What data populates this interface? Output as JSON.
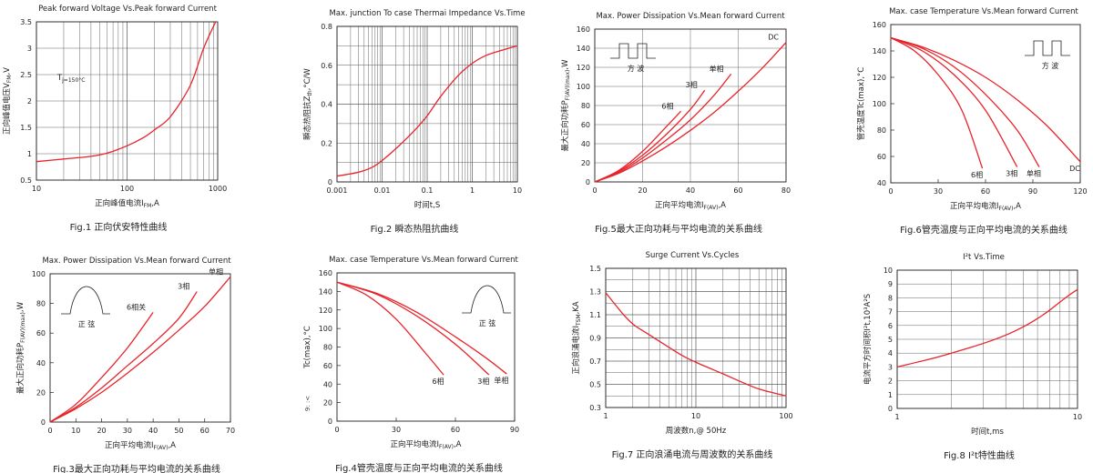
{
  "chart_data": [
    {
      "id": "fig1",
      "type": "line",
      "title": "Peak forward Voltage Vs.Peak forward Current",
      "caption": "Fig.1 正向伏安特性曲线",
      "xlabel": "正向峰值电流I_FM,A",
      "ylabel": "正向峰值电压V_FM,V",
      "xscale": "log",
      "yscale": "linear",
      "xlim": [
        10,
        1000
      ],
      "ylim": [
        0.5,
        3.5
      ],
      "xticks": [
        10,
        100,
        1000
      ],
      "yticks": [
        0.5,
        1,
        1.5,
        2,
        2.5,
        3,
        3.5
      ],
      "ytick_labels": [
        "0.5",
        "1",
        "1.5",
        "2",
        "2.5",
        "3",
        "3.5"
      ],
      "xtick_labels": [
        "10",
        "100",
        "1000"
      ],
      "grid": true,
      "annotations": [
        {
          "text": "T_j=150°C",
          "x": 17,
          "y": 2.4
        }
      ],
      "series": [
        {
          "name": "",
          "color": "#e8232a",
          "x": [
            10,
            20,
            40,
            60,
            100,
            150,
            200,
            300,
            500,
            700,
            950
          ],
          "y": [
            0.85,
            0.9,
            0.95,
            1.01,
            1.15,
            1.3,
            1.45,
            1.7,
            2.3,
            3.0,
            3.5
          ]
        }
      ]
    },
    {
      "id": "fig2",
      "type": "line",
      "title": "Max. junction To case Thermai Impedance Vs.Time",
      "caption": "Fig.2 瞬态热阻抗曲线",
      "xlabel": "时间t,S",
      "ylabel": "瞬态热阻抗Z_th,°C/W",
      "xscale": "log",
      "yscale": "linear",
      "xlim": [
        0.001,
        10
      ],
      "ylim": [
        0,
        0.8
      ],
      "xticks": [
        0.001,
        0.01,
        0.1,
        1,
        10
      ],
      "xtick_labels": [
        "0.001",
        "0.01",
        "0.1",
        "1",
        "10"
      ],
      "yticks": [
        0,
        0.2,
        0.4,
        0.6,
        0.8
      ],
      "ytick_labels": [
        "0",
        "0.2",
        "0.4",
        "0.6",
        "0.8"
      ],
      "grid": true,
      "series": [
        {
          "name": "",
          "color": "#e8232a",
          "x": [
            0.001,
            0.003,
            0.006,
            0.01,
            0.02,
            0.05,
            0.1,
            0.2,
            0.5,
            1,
            2,
            5,
            10
          ],
          "y": [
            0.03,
            0.05,
            0.075,
            0.11,
            0.17,
            0.26,
            0.34,
            0.44,
            0.55,
            0.61,
            0.65,
            0.68,
            0.7
          ]
        }
      ]
    },
    {
      "id": "fig5",
      "type": "line",
      "title": "Max. Power Dissipation Vs.Mean forward Current",
      "caption": "Fig.5最大正向功耗与平均电流的关系曲线",
      "xlabel": "正向平均电流I_F(AV),A",
      "ylabel": "最大正向功耗P_F(AV)(max),W",
      "xscale": "linear",
      "yscale": "linear",
      "xlim": [
        0,
        80
      ],
      "ylim": [
        0,
        160
      ],
      "xticks": [
        0,
        20,
        40,
        60,
        80
      ],
      "xtick_labels": [
        "0",
        "20",
        "40",
        "60",
        "80"
      ],
      "yticks": [
        0,
        20,
        40,
        60,
        80,
        100,
        120,
        140,
        160
      ],
      "ytick_labels": [
        "0",
        "20",
        "40",
        "60",
        "80",
        "100",
        "120",
        "140",
        "160"
      ],
      "grid": true,
      "inset_label": "方  波",
      "inset_shape": "square",
      "series": [
        {
          "name": "6相",
          "color": "#e8232a",
          "x": [
            0,
            10,
            20,
            30,
            36
          ],
          "y": [
            0,
            12,
            32,
            58,
            74
          ]
        },
        {
          "name": "3相",
          "color": "#e8232a",
          "x": [
            0,
            10,
            20,
            30,
            40,
            46
          ],
          "y": [
            0,
            11,
            28,
            50,
            76,
            96
          ]
        },
        {
          "name": "单相",
          "color": "#e8232a",
          "x": [
            0,
            10,
            20,
            30,
            40,
            50,
            57
          ],
          "y": [
            0,
            10,
            25,
            44,
            65,
            91,
            113
          ]
        },
        {
          "name": "DC",
          "color": "#e8232a",
          "x": [
            0,
            10,
            20,
            30,
            40,
            50,
            60,
            70,
            80
          ],
          "y": [
            0,
            9,
            22,
            37,
            54,
            73,
            95,
            119,
            146
          ]
        }
      ]
    },
    {
      "id": "fig6",
      "type": "line",
      "title": "Max. case Temperature Vs.Mean forward Current",
      "caption": "Fig.6管壳温度与正向平均电流的关系曲线",
      "xlabel": "正向平均电流I_F(AV),A",
      "ylabel": "管壳温度Tc(max),°C",
      "xscale": "linear",
      "yscale": "linear",
      "xlim": [
        0,
        120
      ],
      "ylim": [
        40,
        160
      ],
      "xticks": [
        0,
        30,
        60,
        90,
        120
      ],
      "xtick_labels": [
        "0",
        "30",
        "60",
        "90",
        "120"
      ],
      "yticks": [
        40,
        60,
        80,
        100,
        120,
        140,
        160
      ],
      "ytick_labels": [
        "40",
        "60",
        "80",
        "100",
        "120",
        "140",
        "160"
      ],
      "grid": false,
      "inset_label": "方  波",
      "inset_shape": "square",
      "series": [
        {
          "name": "6相",
          "color": "#e8232a",
          "x": [
            0,
            15,
            30,
            45,
            58
          ],
          "y": [
            150,
            140,
            122,
            95,
            51
          ]
        },
        {
          "name": "3相",
          "color": "#e8232a",
          "x": [
            0,
            20,
            40,
            60,
            80
          ],
          "y": [
            150,
            140,
            122,
            95,
            52
          ]
        },
        {
          "name": "单相",
          "color": "#e8232a",
          "x": [
            0,
            20,
            40,
            60,
            80,
            94
          ],
          "y": [
            150,
            142,
            128,
            107,
            80,
            52
          ]
        },
        {
          "name": "DC",
          "color": "#e8232a",
          "x": [
            0,
            20,
            40,
            60,
            80,
            100,
            120
          ],
          "y": [
            150,
            143,
            133,
            120,
            103,
            82,
            56
          ]
        }
      ]
    },
    {
      "id": "fig3",
      "type": "line",
      "title": "Max. Power Dissipation Vs.Mean forward Current",
      "caption": "Fig.3最大正向功耗与平均电流的关系曲线",
      "xlabel": "正向平均电流I_F(AV),A",
      "ylabel": "最大正向功耗P_F(AV)(max),W",
      "xscale": "linear",
      "yscale": "linear",
      "xlim": [
        0,
        70
      ],
      "ylim": [
        0,
        100
      ],
      "xticks": [
        0,
        10,
        20,
        30,
        40,
        50,
        60,
        70
      ],
      "xtick_labels": [
        "0",
        "10",
        "20",
        "30",
        "40",
        "50",
        "60",
        "70"
      ],
      "yticks": [
        0,
        20,
        40,
        60,
        80,
        100
      ],
      "ytick_labels": [
        "0",
        "20",
        "40",
        "60",
        "80",
        "100"
      ],
      "grid": false,
      "inset_label": "正  弦",
      "inset_shape": "sine",
      "series": [
        {
          "name": "6相关",
          "color": "#e8232a",
          "x": [
            0,
            10,
            20,
            30,
            40
          ],
          "y": [
            0,
            12,
            30,
            50,
            74
          ]
        },
        {
          "name": "3相",
          "color": "#e8232a",
          "x": [
            0,
            10,
            20,
            30,
            40,
            50,
            57
          ],
          "y": [
            0,
            10,
            23,
            38,
            53,
            70,
            88
          ]
        },
        {
          "name": "单相",
          "color": "#e8232a",
          "x": [
            0,
            10,
            20,
            30,
            40,
            50,
            60,
            70
          ],
          "y": [
            0,
            9,
            20,
            33,
            47,
            62,
            78,
            98
          ]
        }
      ]
    },
    {
      "id": "fig4",
      "type": "line",
      "title": "Max. case Temperature Vs.Mean forward Current",
      "caption": "Fig.4管壳温度与正向平均电流的关系曲线",
      "xlabel": "正向平均电流I_F(AV),A",
      "ylabel": "Tc(max),°C",
      "ylabel_prefix": "9: :<",
      "xscale": "linear",
      "yscale": "linear",
      "xlim": [
        0,
        90
      ],
      "ylim": [
        0,
        160
      ],
      "xticks": [
        0,
        30,
        60,
        90
      ],
      "xtick_labels": [
        "0",
        "30",
        "60",
        "90"
      ],
      "yticks": [
        0,
        20,
        40,
        60,
        80,
        100,
        120,
        140,
        160
      ],
      "ytick_labels": [
        "0",
        "20",
        "40",
        "60",
        "80",
        "100",
        "120",
        "140",
        "160"
      ],
      "grid": false,
      "inset_label": "正  弦",
      "inset_shape": "sine",
      "series": [
        {
          "name": "6相",
          "color": "#e8232a",
          "x": [
            0,
            15,
            30,
            45,
            54
          ],
          "y": [
            150,
            136,
            110,
            73,
            50
          ]
        },
        {
          "name": "3相",
          "color": "#e8232a",
          "x": [
            0,
            20,
            40,
            60,
            77
          ],
          "y": [
            150,
            137,
            114,
            83,
            50
          ]
        },
        {
          "name": "单相",
          "color": "#e8232a",
          "x": [
            0,
            20,
            40,
            60,
            75,
            86
          ],
          "y": [
            150,
            138,
            118,
            91,
            69,
            51
          ]
        }
      ]
    },
    {
      "id": "fig7",
      "type": "line",
      "title": "Surge Current Vs.Cycles",
      "caption": "Fig.7 正向浪涌电流与周波数的关系曲线",
      "xlabel": "周波数n,@ 50Hz",
      "ylabel": "正向浪涌电流I_TSM,KA",
      "xscale": "log",
      "yscale": "linear",
      "xlim": [
        1,
        100
      ],
      "ylim": [
        0.3,
        1.5
      ],
      "xticks": [
        1,
        10,
        100
      ],
      "xtick_labels": [
        "1",
        "10",
        "100"
      ],
      "yticks": [
        0.3,
        0.5,
        0.7,
        0.9,
        1.1,
        1.3,
        1.5
      ],
      "ytick_labels": [
        "0.3",
        "0.5",
        "0.7",
        "0.9",
        "1.1",
        "1.3",
        "1.5"
      ],
      "grid": true,
      "series": [
        {
          "name": "",
          "color": "#e8232a",
          "x": [
            1,
            1.5,
            2,
            3,
            5,
            7,
            10,
            20,
            30,
            50,
            100
          ],
          "y": [
            1.29,
            1.12,
            1.02,
            0.93,
            0.82,
            0.75,
            0.69,
            0.59,
            0.53,
            0.46,
            0.4
          ]
        }
      ]
    },
    {
      "id": "fig8",
      "type": "line",
      "title": "I²t  Vs.Time",
      "caption": "Fig.8 I²t特性曲线",
      "xlabel": "时间t,ms",
      "ylabel": "电流平方时间积I²t,10³A²S",
      "xscale": "log",
      "yscale": "linear",
      "xlim": [
        1,
        10
      ],
      "ylim": [
        0,
        10
      ],
      "xticks": [
        1,
        10
      ],
      "xtick_labels": [
        "1",
        "10"
      ],
      "yticks": [
        0,
        1,
        2,
        3,
        4,
        5,
        6,
        7,
        8,
        9,
        10
      ],
      "ytick_labels": [
        "0",
        "1",
        "2",
        "3",
        "4",
        "5",
        "6",
        "7",
        "8",
        "9",
        "10"
      ],
      "grid": true,
      "series": [
        {
          "name": "",
          "color": "#e8232a",
          "x": [
            1,
            1.5,
            2,
            3,
            4,
            5,
            6,
            7,
            8,
            9,
            10
          ],
          "y": [
            3.0,
            3.55,
            4.0,
            4.7,
            5.3,
            5.9,
            6.5,
            7.1,
            7.7,
            8.2,
            8.6
          ]
        }
      ]
    }
  ]
}
